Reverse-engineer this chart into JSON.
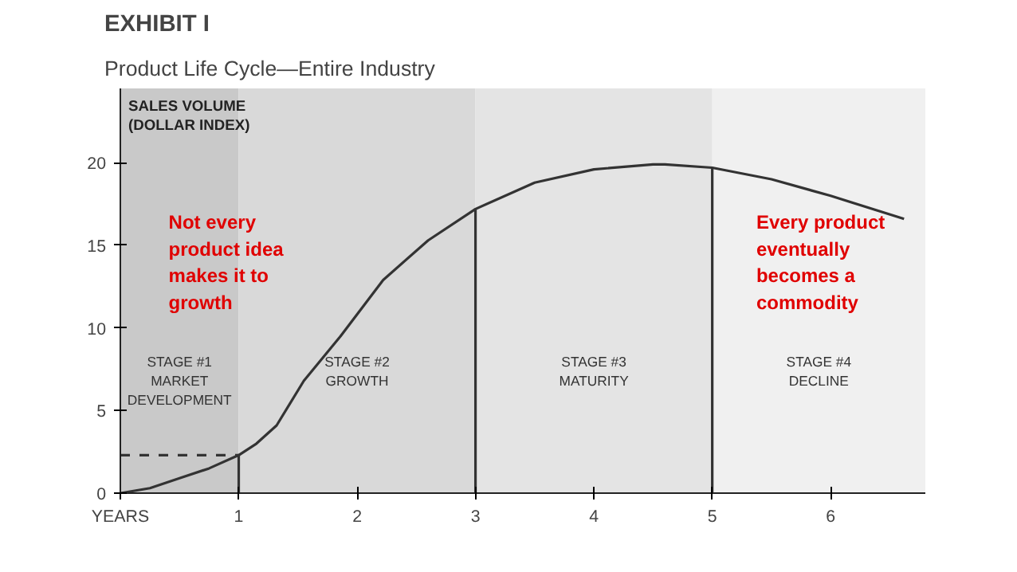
{
  "chart_data": {
    "type": "line",
    "title": "EXHIBIT I",
    "subtitle": "Product Life Cycle—Entire Industry",
    "xlabel": "YEARS",
    "ylabel": "SALES VOLUME\n(DOLLAR INDEX)",
    "xlim": [
      0,
      6.8
    ],
    "ylim": [
      0,
      24.5
    ],
    "xticks": [
      1,
      2,
      3,
      4,
      5,
      6
    ],
    "yticks": [
      0,
      5,
      10,
      15,
      20
    ],
    "grid": false,
    "marker": "none",
    "line_style": "solid",
    "series": [
      {
        "color": "#333333",
        "x": [
          0,
          0.25,
          0.5,
          0.75,
          1,
          1.15,
          1.32,
          1.55,
          1.86,
          2.22,
          2.6,
          3,
          3.5,
          4,
          4.5,
          4.6,
          5,
          5.5,
          6,
          6.62
        ],
        "values": [
          0,
          0.3,
          0.9,
          1.5,
          2.3,
          3.0,
          4.1,
          6.8,
          9.5,
          12.9,
          15.3,
          17.2,
          18.8,
          19.6,
          19.9,
          19.9,
          19.7,
          19.0,
          18.0,
          16.6
        ]
      },
      {
        "color": "#333333",
        "x": [
          1,
          1
        ],
        "values": [
          0,
          2.3
        ]
      },
      {
        "color": "#333333",
        "x": [
          3,
          3
        ],
        "values": [
          0,
          17.2
        ]
      },
      {
        "color": "#333333",
        "x": [
          5,
          5
        ],
        "values": [
          0,
          19.7
        ]
      },
      {
        "color": "#333333",
        "x": [
          0,
          1
        ],
        "values": [
          2.3,
          2.3
        ],
        "line_style": "dashed"
      }
    ],
    "bands": [
      {
        "axis": "x",
        "from": 0,
        "to": 1,
        "label": "STAGE #1\nMARKET\nDEVELOPMENT",
        "color": "#c9c9c9"
      },
      {
        "axis": "x",
        "from": 1,
        "to": 3,
        "label": "STAGE #2\nGROWTH",
        "color": "#d9d9d9"
      },
      {
        "axis": "x",
        "from": 3,
        "to": 5,
        "label": "STAGE #3\nMATURITY",
        "color": "#e4e4e4"
      },
      {
        "axis": "x",
        "from": 5,
        "to": 6.8,
        "label": "STAGE #4\nDECLINE",
        "color": "#f0f0f0"
      }
    ],
    "annotations": [
      "Not every product idea makes it to growth",
      "Every product eventually becomes a commodity"
    ]
  }
}
